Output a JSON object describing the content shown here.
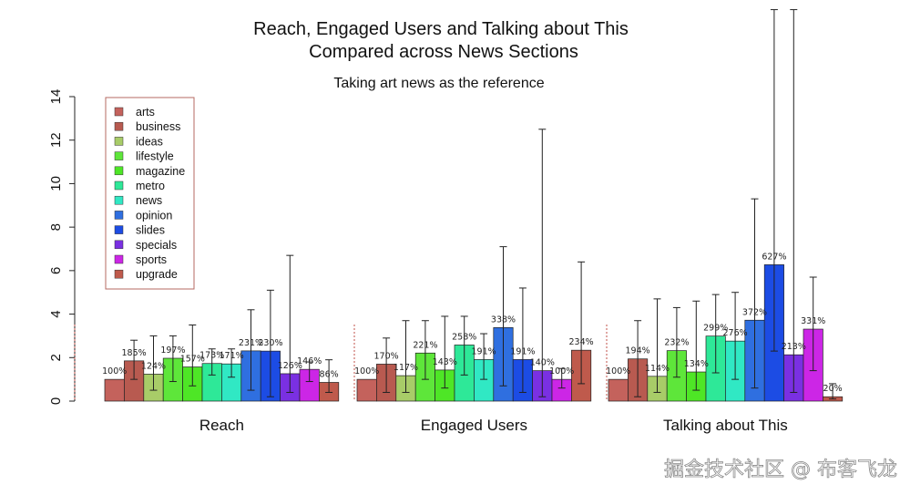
{
  "watermark": "掘金技术社区 @ 布客飞龙",
  "chart_data": {
    "type": "bar",
    "title_line1": "Reach, Engaged Users and Talking about This",
    "title_line2": "Compared across News Sections",
    "subtitle": "Taking art news as the reference",
    "ylim": [
      0,
      14
    ],
    "yticks": [
      "0",
      "2",
      "4",
      "6",
      "8",
      "10",
      "12",
      "14"
    ],
    "categories": [
      "Reach",
      "Engaged Users",
      "Talking about This"
    ],
    "legend_position": "top-left",
    "series": [
      {
        "name": "arts",
        "color": "#c4625c",
        "values": [
          1.0,
          1.0,
          1.0
        ],
        "labels": [
          "100%",
          "100%",
          "100%"
        ],
        "err": [
          null,
          null,
          null
        ]
      },
      {
        "name": "business",
        "color": "#b85a50",
        "values": [
          1.85,
          1.7,
          1.94
        ],
        "labels": [
          "185%",
          "170%",
          "194%"
        ],
        "err": [
          [
            1.0,
            2.8
          ],
          [
            0.4,
            2.9
          ],
          [
            0.2,
            3.7
          ]
        ]
      },
      {
        "name": "ideas",
        "color": "#a8cc68",
        "values": [
          1.24,
          1.17,
          1.14
        ],
        "labels": [
          "124%",
          "117%",
          "114%"
        ],
        "err": [
          [
            0.5,
            3.0
          ],
          [
            0.4,
            3.7
          ],
          [
            0.4,
            4.7
          ]
        ]
      },
      {
        "name": "lifestyle",
        "color": "#5ee63a",
        "values": [
          1.97,
          2.21,
          2.32
        ],
        "labels": [
          "197%",
          "221%",
          "232%"
        ],
        "err": [
          [
            0.9,
            3.0
          ],
          [
            1.0,
            3.7
          ],
          [
            1.1,
            4.3
          ]
        ]
      },
      {
        "name": "magazine",
        "color": "#4ee626",
        "values": [
          1.57,
          1.43,
          1.34
        ],
        "labels": [
          "157%",
          "143%",
          "134%"
        ],
        "err": [
          [
            0.7,
            3.5
          ],
          [
            0.6,
            3.9
          ],
          [
            0.5,
            4.6
          ]
        ]
      },
      {
        "name": "metro",
        "color": "#2ee898",
        "values": [
          1.73,
          2.58,
          2.99
        ],
        "labels": [
          "173%",
          "258%",
          "299%"
        ],
        "err": [
          [
            1.2,
            2.4
          ],
          [
            1.2,
            3.9
          ],
          [
            1.3,
            4.9
          ]
        ]
      },
      {
        "name": "news",
        "color": "#30e8c4",
        "values": [
          1.71,
          1.91,
          2.76
        ],
        "labels": [
          "171%",
          "191%",
          "276%"
        ],
        "err": [
          [
            1.1,
            2.4
          ],
          [
            1.0,
            3.1
          ],
          [
            1.0,
            5.0
          ]
        ]
      },
      {
        "name": "opinion",
        "color": "#2f6fe0",
        "values": [
          2.31,
          3.38,
          3.72
        ],
        "labels": [
          "231%",
          "338%",
          "372%"
        ],
        "err": [
          [
            0.5,
            4.2
          ],
          [
            0.7,
            7.1
          ],
          [
            0.6,
            9.3
          ]
        ]
      },
      {
        "name": "slides",
        "color": "#1c4ce4",
        "values": [
          2.3,
          1.91,
          6.27
        ],
        "labels": [
          "230%",
          "191%",
          "627%"
        ],
        "err": [
          [
            0.2,
            5.1
          ],
          [
            0.4,
            5.2
          ],
          [
            2.3,
            18.0
          ]
        ]
      },
      {
        "name": "specials",
        "color": "#7a30e2",
        "values": [
          1.26,
          1.4,
          2.13
        ],
        "labels": [
          "126%",
          "140%",
          "213%"
        ],
        "err": [
          [
            0.4,
            6.7
          ],
          [
            0.2,
            12.5
          ],
          [
            0.4,
            18.0
          ]
        ]
      },
      {
        "name": "sports",
        "color": "#cc26e6",
        "values": [
          1.46,
          1.0,
          3.31
        ],
        "labels": [
          "146%",
          "100%",
          "331%"
        ],
        "err": [
          [
            0.9,
            1.8
          ],
          [
            0.6,
            1.5
          ],
          [
            1.4,
            5.7
          ]
        ]
      },
      {
        "name": "upgrade",
        "color": "#bf5a4c",
        "values": [
          0.86,
          2.34,
          0.2
        ],
        "labels": [
          "86%",
          "234%",
          "20%"
        ],
        "err": [
          [
            0.4,
            1.9
          ],
          [
            0.8,
            6.4
          ],
          [
            0.1,
            0.8
          ]
        ]
      }
    ]
  }
}
